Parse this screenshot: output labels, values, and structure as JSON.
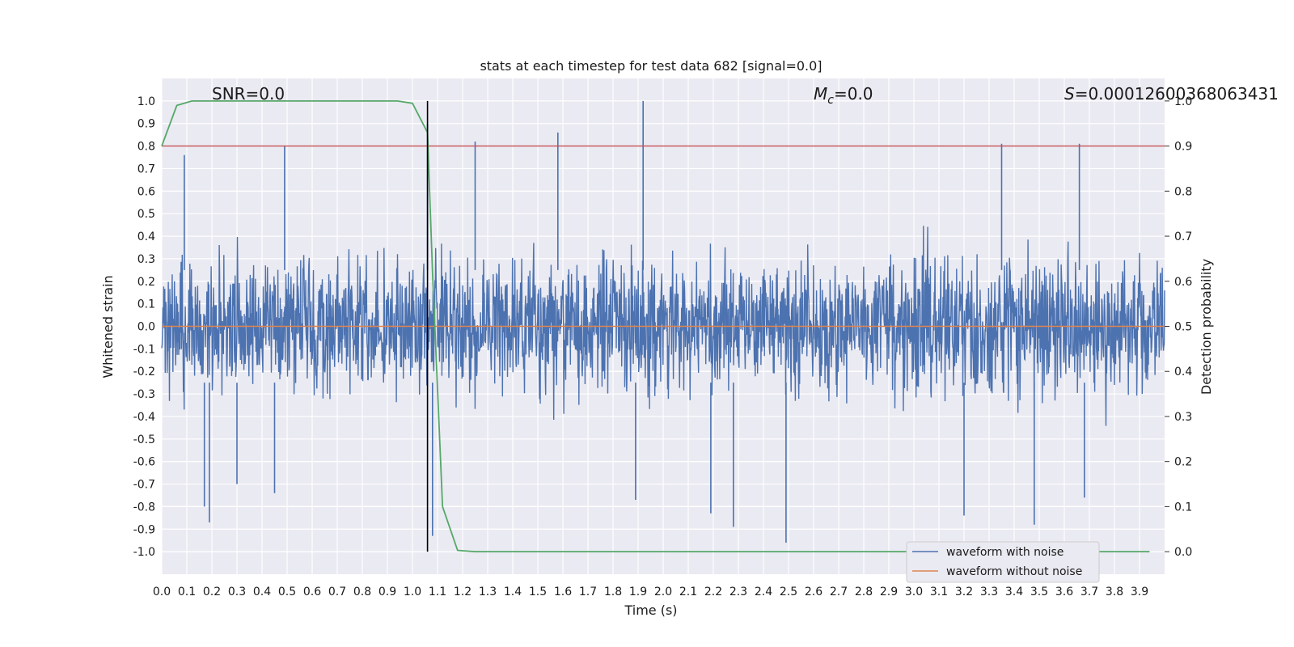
{
  "chart_data": {
    "type": "line",
    "title": "stats at each timestep for test data 682 [signal=0.0]",
    "xlabel": "Time (s)",
    "ylabel": "Whitened strain",
    "y2label": "Detection probability",
    "xlim": [
      0.0,
      4.0
    ],
    "ylim": [
      -1.1,
      1.1
    ],
    "y2lim": [
      -0.05,
      1.05
    ],
    "grid": true,
    "legend_position": "lower-right",
    "annotations": {
      "snr": "SNR=0.0",
      "mc_symbol": "M",
      "mc_sub": "c",
      "mc_value": "=0.0",
      "s_symbol": "S",
      "s_value": "=0.00012600368063431"
    },
    "x_ticks": [
      "0.0",
      "0.1",
      "0.2",
      "0.3",
      "0.4",
      "0.5",
      "0.6",
      "0.7",
      "0.8",
      "0.9",
      "1.0",
      "1.1",
      "1.2",
      "1.3",
      "1.4",
      "1.5",
      "1.6",
      "1.7",
      "1.8",
      "1.9",
      "2.0",
      "2.1",
      "2.2",
      "2.3",
      "2.4",
      "2.5",
      "2.6",
      "2.7",
      "2.8",
      "2.9",
      "3.0",
      "3.1",
      "3.2",
      "3.3",
      "3.4",
      "3.5",
      "3.6",
      "3.7",
      "3.8",
      "3.9"
    ],
    "y_ticks": [
      "1.0",
      "0.9",
      "0.8",
      "0.7",
      "0.6",
      "0.5",
      "0.4",
      "0.3",
      "0.2",
      "0.1",
      "0.0",
      "-0.1",
      "-0.2",
      "-0.3",
      "-0.4",
      "-0.5",
      "-0.6",
      "-0.7",
      "-0.8",
      "-0.9",
      "-1.0"
    ],
    "y2_ticks": [
      "1.0",
      "0.9",
      "0.8",
      "0.7",
      "0.6",
      "0.5",
      "0.4",
      "0.3",
      "0.2",
      "0.1",
      "0.0"
    ],
    "series": [
      {
        "name": "waveform with noise",
        "color": "#4c72b0",
        "kind": "noise",
        "amplitude_typical": 0.4,
        "peaks": [
          {
            "x": 0.09,
            "y": 0.76
          },
          {
            "x": 0.17,
            "y": -0.8
          },
          {
            "x": 0.19,
            "y": -0.87
          },
          {
            "x": 0.49,
            "y": 0.8
          },
          {
            "x": 0.45,
            "y": -0.74
          },
          {
            "x": 0.3,
            "y": -0.7
          },
          {
            "x": 1.25,
            "y": 0.82
          },
          {
            "x": 1.58,
            "y": 0.86
          },
          {
            "x": 1.92,
            "y": 1.0
          },
          {
            "x": 1.89,
            "y": -0.77
          },
          {
            "x": 2.19,
            "y": -0.83
          },
          {
            "x": 2.28,
            "y": -0.89
          },
          {
            "x": 2.49,
            "y": -0.96
          },
          {
            "x": 3.2,
            "y": -0.84
          },
          {
            "x": 3.35,
            "y": 0.81
          },
          {
            "x": 3.48,
            "y": -0.88
          },
          {
            "x": 3.66,
            "y": 0.81
          },
          {
            "x": 3.68,
            "y": -0.76
          },
          {
            "x": 1.08,
            "y": -0.93
          },
          {
            "x": 1.06,
            "y": 0.9
          }
        ]
      },
      {
        "name": "waveform without noise",
        "color": "#dd8452",
        "x": [
          0.0,
          4.0
        ],
        "y": [
          0.0,
          0.0
        ]
      },
      {
        "color": "#55a868",
        "axis": "right",
        "x": [
          0.0,
          0.06,
          0.12,
          0.2,
          0.4,
          0.6,
          0.8,
          0.94,
          1.0,
          1.06,
          1.08,
          1.12,
          1.18,
          1.25,
          1.5,
          2.0,
          3.0,
          3.94
        ],
        "y": [
          0.9,
          0.99,
          1.0,
          1.0,
          1.0,
          1.0,
          1.0,
          1.0,
          0.995,
          0.93,
          0.62,
          0.1,
          0.003,
          0.0,
          0.0,
          0.0,
          0.0,
          0.0
        ]
      }
    ],
    "hlines": [
      {
        "axis": "right",
        "y": 0.9,
        "color": "#c44e52"
      }
    ],
    "vlines": [
      {
        "x": 1.06,
        "y_range": [
          -1.0,
          1.0
        ],
        "color": "#000000"
      }
    ]
  }
}
